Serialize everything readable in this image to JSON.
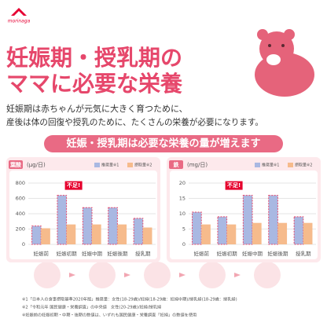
{
  "header": {
    "logo": "morinaga",
    "title_lines": [
      "妊娠期・授乳期の",
      "ママに必要な栄養"
    ],
    "body_lines": [
      "妊娠期は赤ちゃんが元気に大きく育つために、",
      "産後は体の回復や授乳のために、たくさんの栄養が必要になります。"
    ],
    "banner": "妊娠・授乳期は必要な栄養の量が増えます"
  },
  "chart_data": [
    {
      "type": "bar",
      "title": "葉酸",
      "y_label": "(μg/日)",
      "annotation": "不足!",
      "categories": [
        "妊娠前",
        "妊娠初期",
        "妊娠中期",
        "妊娠後期",
        "授乳期"
      ],
      "series": [
        {
          "name": "推奨量※1",
          "color": "#a9b8e2",
          "values": [
            240,
            640,
            480,
            480,
            340
          ]
        },
        {
          "name": "摂取量※2",
          "color": "#f6bb8c",
          "values": [
            210,
            260,
            260,
            260,
            220
          ]
        }
      ],
      "ylim": [
        0,
        800
      ],
      "yticks": [
        0,
        200,
        400,
        600,
        800
      ],
      "grid": true
    },
    {
      "type": "bar",
      "title": "鉄",
      "y_label": "(mg/日)",
      "annotation": "不足!",
      "categories": [
        "妊娠前",
        "妊娠初期",
        "妊娠中期",
        "妊娠後期",
        "授乳期"
      ],
      "series": [
        {
          "name": "推奨量※1",
          "color": "#a9b8e2",
          "values": [
            10.5,
            9.0,
            16.0,
            16.0,
            9.0
          ]
        },
        {
          "name": "摂取量※2",
          "color": "#f6bb8c",
          "values": [
            6.5,
            6.5,
            7.0,
            7.0,
            7.0
          ]
        }
      ],
      "ylim": [
        0,
        20
      ],
      "yticks": [
        0,
        5,
        10,
        15,
        20
      ],
      "grid": true
    }
  ],
  "footnotes": [
    "※1「日本人の食事摂取基準2020年版」推奨量：女性(18-29歳)/妊婦(18-29歳：妊婦中期)/授乳婦(18-29歳：授乳婦)",
    "※2「令和元年 国民健康・栄養調査」の中央値　女性(20-29歳)/妊婦/授乳婦",
    "※妊娠前の妊娠初期・中期・後期の数値は、いずれも国民健康・栄養調査「妊婦」の数値を使用"
  ]
}
